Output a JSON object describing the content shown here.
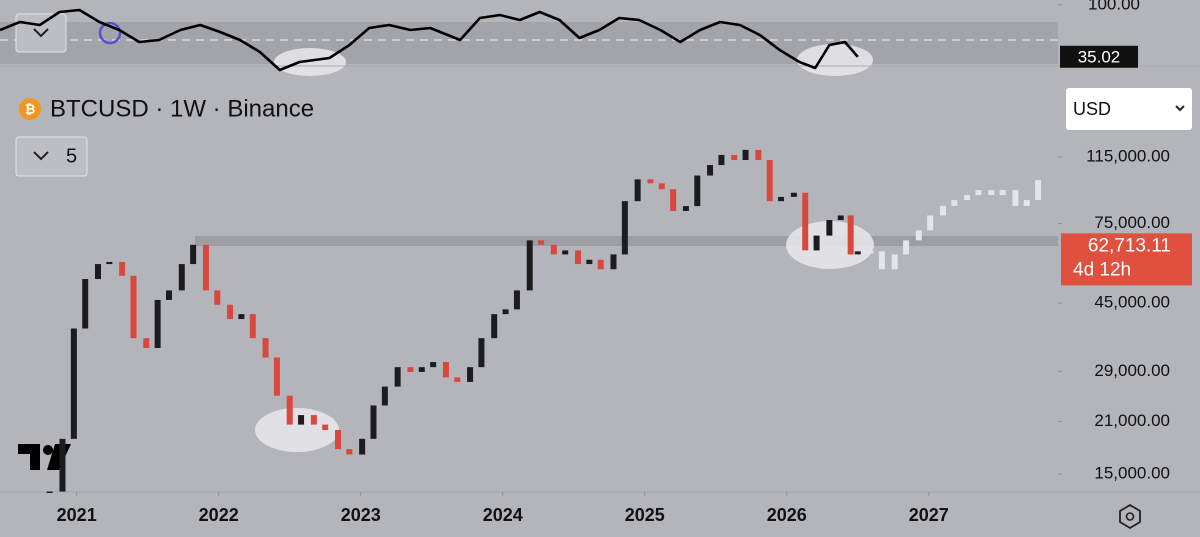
{
  "chart_data": {
    "type": "candlestick",
    "title": "BTCUSD · 1W · Binance",
    "indicator_count": 5,
    "currency": "USD",
    "log_scale": true,
    "up_color": "#1c1c1e",
    "down_color": "#d9473d",
    "xlim": [
      2020.46,
      2027.91
    ],
    "xticks": [
      2021,
      2022,
      2023,
      2024,
      2025,
      2026,
      2027
    ],
    "ylim": [
      13360,
      171300
    ],
    "yticks": [
      {
        "value": 15000,
        "label": "15,000.00"
      },
      {
        "value": 21000,
        "label": "21,000.00"
      },
      {
        "value": 29000,
        "label": "29,000.00"
      },
      {
        "value": 45000,
        "label": "45,000.00"
      },
      {
        "value": 75000,
        "label": "75,000.00"
      },
      {
        "value": 115000,
        "label": "115,000.00"
      }
    ],
    "x": [
      2020.81,
      2020.9,
      2020.98,
      2021.06,
      2021.15,
      2021.23,
      2021.32,
      2021.4,
      2021.49,
      2021.57,
      2021.65,
      2021.74,
      2021.82,
      2021.91,
      2021.99,
      2022.08,
      2022.16,
      2022.24,
      2022.33,
      2022.41,
      2022.5,
      2022.58,
      2022.67,
      2022.75,
      2022.84,
      2022.92,
      2023.01,
      2023.09,
      2023.17,
      2023.26,
      2023.35,
      2023.43,
      2023.51,
      2023.6,
      2023.68,
      2023.77,
      2023.85,
      2023.94,
      2024.02,
      2024.1,
      2024.19,
      2024.27,
      2024.36,
      2024.44,
      2024.53,
      2024.61,
      2024.69,
      2024.78,
      2024.86,
      2024.95,
      2025.04,
      2025.12,
      2025.2,
      2025.29,
      2025.37,
      2025.46,
      2025.54,
      2025.63,
      2025.71,
      2025.8,
      2025.88,
      2025.96,
      2026.05,
      2026.13,
      2026.21,
      2026.3,
      2026.38,
      2026.45,
      2026.5
    ],
    "close": [
      13400,
      18800,
      38200,
      52500,
      57800,
      58600,
      53600,
      35900,
      33700,
      45900,
      48800,
      57800,
      65400,
      48800,
      44500,
      40600,
      41900,
      35900,
      31700,
      24800,
      20600,
      21900,
      20600,
      19900,
      17600,
      17000,
      18800,
      23300,
      26300,
      29800,
      28900,
      29800,
      30800,
      27900,
      27100,
      29800,
      35900,
      41900,
      43200,
      48800,
      67300,
      65400,
      61500,
      63100,
      57800,
      59400,
      55900,
      61500,
      86600,
      99600,
      97100,
      93500,
      81300,
      83900,
      102100,
      109200,
      116500,
      112800,
      120400,
      112800,
      86600,
      89000,
      91400,
      63100,
      69400,
      76700,
      79000,
      61500,
      62713.11
    ],
    "last_price": {
      "value": 62713.11,
      "label": "62,713.11"
    },
    "countdown": "4d 12h",
    "projection": {
      "color": "#e4e5ea",
      "x": [
        2026.59,
        2026.67,
        2026.76,
        2026.84,
        2026.93,
        2027.01,
        2027.1,
        2027.18,
        2027.27,
        2027.35,
        2027.44,
        2027.52,
        2027.61,
        2027.69,
        2027.77
      ],
      "values": [
        62700,
        55900,
        61500,
        67300,
        71800,
        79000,
        84000,
        87200,
        90100,
        93000,
        90100,
        93000,
        84000,
        87200,
        99100
      ]
    },
    "rsi": {
      "color": "#000000",
      "ylim": [
        16,
        106
      ],
      "yticks": [
        {
          "value": 100,
          "label": "100.00"
        }
      ],
      "last": {
        "value": 35.02,
        "label": "35.02"
      },
      "x": [
        2020.46,
        2020.6,
        2020.74,
        2020.88,
        2021.02,
        2021.16,
        2021.3,
        2021.44,
        2021.58,
        2021.73,
        2021.87,
        2022.01,
        2022.15,
        2022.29,
        2022.43,
        2022.57,
        2022.78,
        2022.92,
        2023.06,
        2023.2,
        2023.35,
        2023.49,
        2023.7,
        2023.84,
        2023.98,
        2024.12,
        2024.26,
        2024.4,
        2024.54,
        2024.68,
        2024.82,
        2024.96,
        2025.11,
        2025.25,
        2025.39,
        2025.53,
        2025.67,
        2025.81,
        2025.95,
        2026.09,
        2026.2,
        2026.3,
        2026.41,
        2026.5
      ],
      "values": [
        68.5,
        78.5,
        74.8,
        91,
        93.5,
        78.5,
        68.5,
        53.5,
        56,
        68.5,
        74.8,
        66,
        56,
        41,
        18.5,
        28.5,
        33.5,
        49.8,
        71,
        74.8,
        68.5,
        71,
        56,
        83.5,
        87.3,
        81,
        91,
        81,
        58.5,
        68.5,
        83.5,
        81,
        68.5,
        53.5,
        68.5,
        78.5,
        74.8,
        62.3,
        43.5,
        28.5,
        21,
        49.8,
        53.5,
        35.02
      ]
    }
  }
}
